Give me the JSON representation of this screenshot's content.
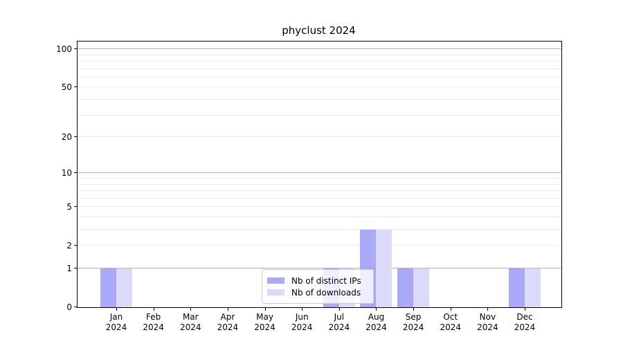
{
  "title": "phyclust 2024",
  "chart_data": {
    "type": "bar",
    "title": "phyclust 2024",
    "categories": [
      "Jan",
      "Feb",
      "Mar",
      "Apr",
      "May",
      "Jun",
      "Jul",
      "Aug",
      "Sep",
      "Oct",
      "Nov",
      "Dec"
    ],
    "year_label": "2024",
    "series": [
      {
        "name": "Nb of distinct IPs",
        "color": "#a9a9f7",
        "values": [
          1,
          0,
          0,
          0,
          0,
          0,
          1,
          3,
          1,
          0,
          0,
          1
        ]
      },
      {
        "name": "Nb of downloads",
        "color": "#dbdbf9",
        "values": [
          1,
          0,
          0,
          0,
          0,
          0,
          1,
          3,
          1,
          0,
          0,
          1
        ]
      }
    ],
    "y_axis": {
      "scale": "log1p",
      "ticks": [
        0,
        1,
        2,
        5,
        10,
        20,
        50,
        100
      ],
      "major_gridlines": [
        1,
        10,
        100
      ],
      "minor_gridlines": [
        2,
        3,
        4,
        5,
        6,
        7,
        8,
        9,
        20,
        30,
        40,
        50,
        60,
        70,
        80,
        90
      ],
      "max": 115
    },
    "xlabel": "",
    "ylabel": "",
    "grid": true,
    "legend_position": "lower center inside plot"
  },
  "legend": {
    "items": [
      {
        "label": "Nb of distinct IPs"
      },
      {
        "label": "Nb of downloads"
      }
    ]
  },
  "colors": {
    "bar_dark": "#a9a9f7",
    "bar_light": "#dbdbf9",
    "grid_major": "#b2b2b2",
    "grid_minor": "#e9e9e9",
    "axis": "#000000",
    "legend_border": "#cccccc"
  }
}
